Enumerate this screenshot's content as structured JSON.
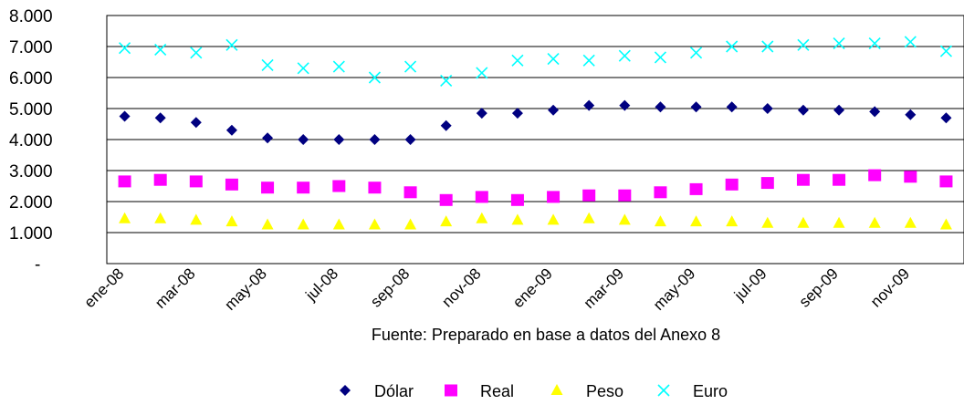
{
  "chart_data": {
    "type": "scatter",
    "x": [
      "ene-08",
      "feb-08",
      "mar-08",
      "abr-08",
      "may-08",
      "jun-08",
      "jul-08",
      "ago-08",
      "sep-08",
      "oct-08",
      "nov-08",
      "dic-08",
      "ene-09",
      "feb-09",
      "mar-09",
      "abr-09",
      "may-09",
      "jun-09",
      "jul-09",
      "ago-09",
      "sep-09",
      "oct-09",
      "nov-09",
      "dic-09"
    ],
    "xtick_labels": [
      "ene-08",
      "mar-08",
      "may-08",
      "jul-08",
      "sep-08",
      "nov-08",
      "ene-09",
      "mar-09",
      "may-09",
      "jul-09",
      "sep-09",
      "nov-09"
    ],
    "ylim": [
      0,
      8000
    ],
    "ytick_labels": [
      "-",
      "1.000",
      "2.000",
      "3.000",
      "4.000",
      "5.000",
      "6.000",
      "7.000",
      "8.000"
    ],
    "grid": true,
    "legend_position": "bottom",
    "series": [
      {
        "name": "Dólar",
        "marker": "diamond",
        "color": "#000080",
        "values": [
          4750,
          4700,
          4550,
          4300,
          4050,
          4000,
          4000,
          4000,
          4000,
          4450,
          4850,
          4850,
          4950,
          5100,
          5100,
          5050,
          5050,
          5050,
          5000,
          4950,
          4950,
          4900,
          4800,
          4700
        ]
      },
      {
        "name": "Real",
        "marker": "square",
        "color": "#ff00ff",
        "values": [
          2650,
          2700,
          2650,
          2550,
          2450,
          2450,
          2500,
          2450,
          2300,
          2050,
          2150,
          2050,
          2150,
          2200,
          2200,
          2300,
          2400,
          2550,
          2600,
          2700,
          2700,
          2850,
          2800,
          2650
        ]
      },
      {
        "name": "Peso",
        "marker": "triangle",
        "color": "#ffff00",
        "values": [
          1450,
          1450,
          1400,
          1350,
          1250,
          1250,
          1250,
          1250,
          1250,
          1350,
          1450,
          1400,
          1400,
          1450,
          1400,
          1350,
          1350,
          1350,
          1300,
          1300,
          1300,
          1300,
          1300,
          1250
        ]
      },
      {
        "name": "Euro",
        "marker": "x",
        "color": "#00ffff",
        "values": [
          6950,
          6900,
          6800,
          7050,
          6400,
          6300,
          6350,
          6000,
          6350,
          5900,
          6150,
          6550,
          6600,
          6550,
          6700,
          6650,
          6800,
          7000,
          7000,
          7050,
          7100,
          7100,
          7150,
          6850
        ]
      }
    ],
    "source_note": "Fuente: Preparado en base a datos del Anexo 8"
  }
}
